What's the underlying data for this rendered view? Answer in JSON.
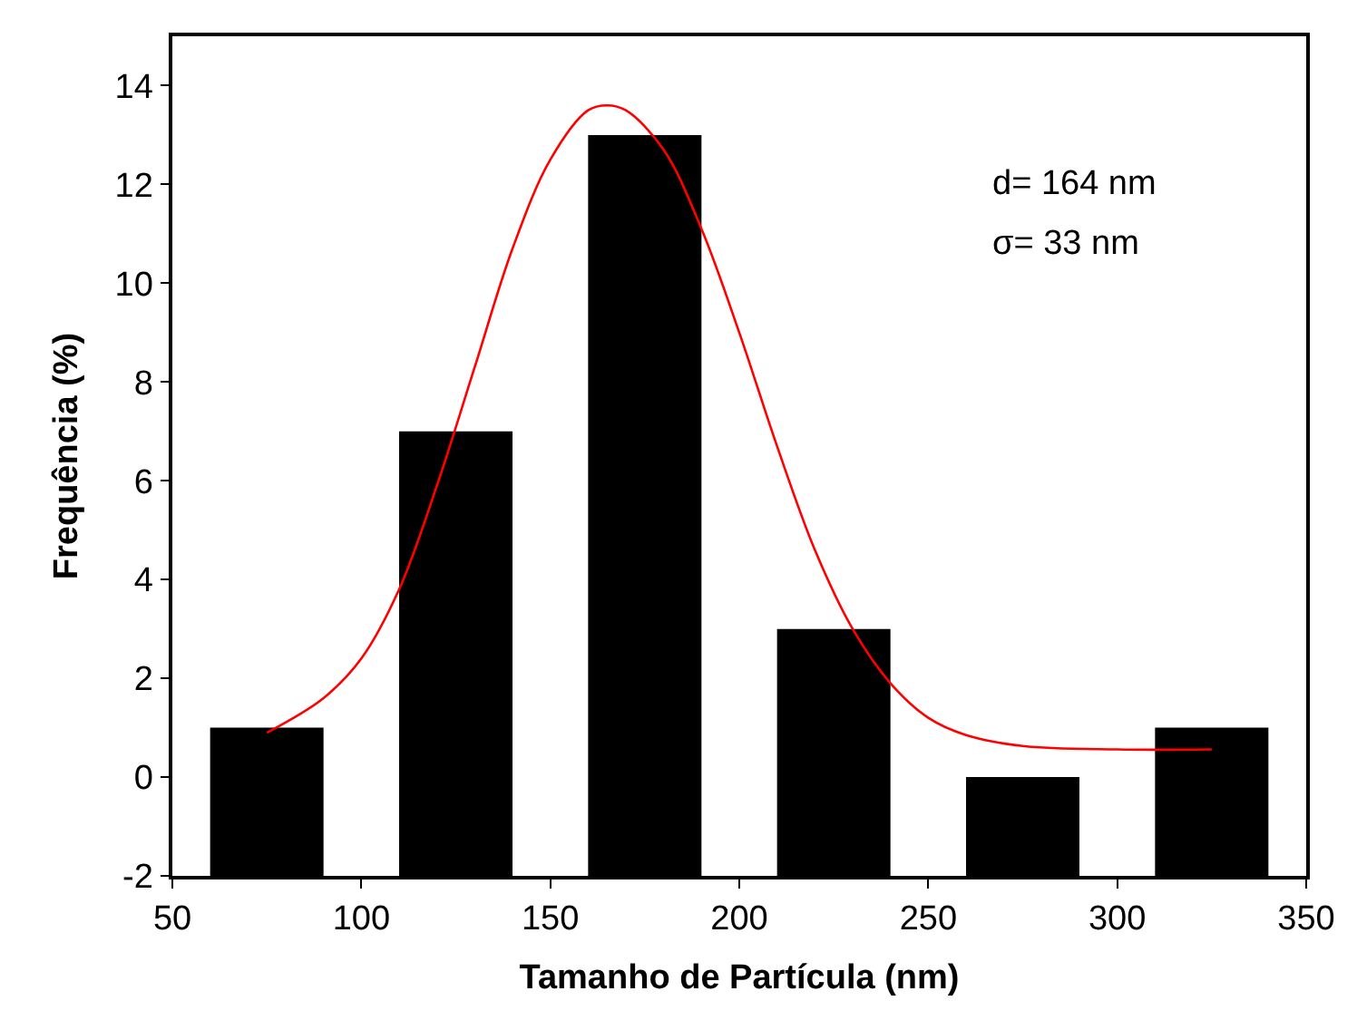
{
  "chart_data": {
    "type": "bar",
    "xlabel": "Tamanho de Partícula (nm)",
    "ylabel": "Frequência (%)",
    "x": [
      75,
      125,
      175,
      225,
      275,
      325
    ],
    "series": [
      {
        "color": "#000000",
        "values": [
          3,
          9,
          15,
          5,
          2,
          3
        ],
        "base": [
          -2,
          -2,
          -2,
          -2,
          -2,
          -2
        ]
      },
      {
        "type": "line",
        "color": "#ff0000",
        "x": [
          75,
          90,
          100,
          110,
          120,
          130,
          140,
          150,
          160,
          165,
          170,
          180,
          190,
          200,
          210,
          220,
          230,
          240,
          250,
          260,
          275,
          300,
          325
        ],
        "values": [
          0.9,
          1.6,
          2.4,
          3.8,
          5.9,
          8.3,
          10.7,
          12.5,
          13.5,
          13.6,
          13.5,
          12.7,
          11.1,
          9.0,
          6.7,
          4.6,
          3.0,
          1.9,
          1.2,
          0.85,
          0.63,
          0.56,
          0.56
        ]
      }
    ],
    "xlim": [
      50,
      350
    ],
    "xticks": [
      50,
      100,
      150,
      200,
      250,
      300,
      350
    ],
    "ylim": [
      -2,
      15
    ],
    "yticks": [
      -2,
      0,
      2,
      4,
      6,
      8,
      10,
      12,
      14
    ],
    "annotations": [
      "d= 164 nm",
      "σ= 33 nm"
    ],
    "marker": "none",
    "line_style": "solid"
  }
}
